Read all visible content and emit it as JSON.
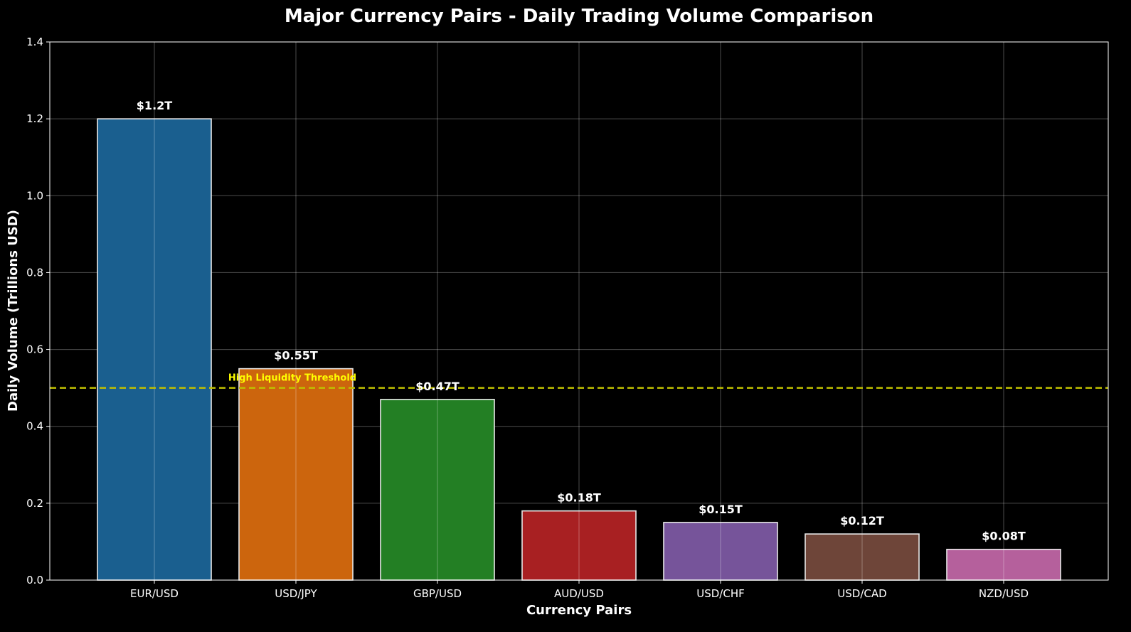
{
  "chart_data": {
    "type": "bar",
    "title": "Major Currency Pairs - Daily Trading Volume Comparison",
    "xlabel": "Currency Pairs",
    "ylabel": "Daily Volume (Trillions USD)",
    "categories": [
      "EUR/USD",
      "USD/JPY",
      "GBP/USD",
      "AUD/USD",
      "USD/CHF",
      "USD/CAD",
      "NZD/USD"
    ],
    "values": [
      1.2,
      0.55,
      0.47,
      0.18,
      0.15,
      0.12,
      0.08
    ],
    "data_labels": [
      "$1.2T",
      "$0.55T",
      "$0.47T",
      "$0.18T",
      "$0.15T",
      "$0.12T",
      "$0.08T"
    ],
    "colors": [
      "#1a5f8f",
      "#cc650d",
      "#237f24",
      "#a82022",
      "#76549a",
      "#6e4539",
      "#b5609c"
    ],
    "ylim": [
      0,
      1.4
    ],
    "yticks": [
      0.0,
      0.2,
      0.4,
      0.6,
      0.8,
      1.0,
      1.2,
      1.4
    ],
    "ytick_labels": [
      "0.0",
      "0.2",
      "0.4",
      "0.6",
      "0.8",
      "1.0",
      "1.2",
      "1.4"
    ],
    "grid": true,
    "background": "#000000",
    "threshold": {
      "value": 0.5,
      "label": "High Liquidity Threshold",
      "color": "#bfbf00",
      "label_color": "#ffff00",
      "style": "dashed"
    }
  }
}
